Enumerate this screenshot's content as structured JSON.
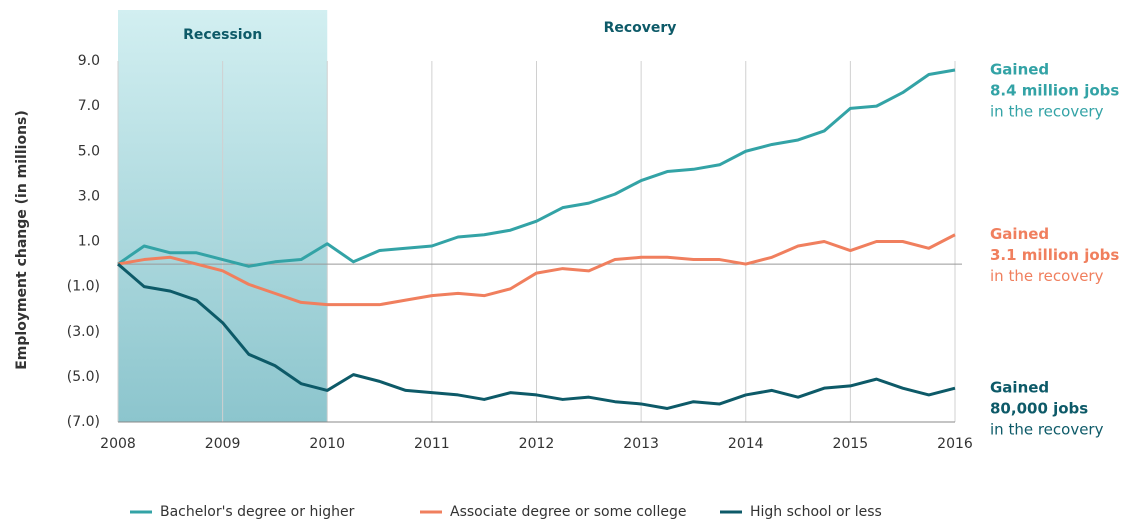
{
  "chart_data": {
    "type": "line",
    "y_label": "Employment change (in millions)",
    "shaded_regions": [
      {
        "label": "Recession",
        "start": 2008,
        "end": 2010
      }
    ],
    "region_labels": [
      {
        "label": "Recovery"
      }
    ],
    "x": [
      2008,
      2008.25,
      2008.5,
      2008.75,
      2009,
      2009.25,
      2009.5,
      2009.75,
      2010,
      2010.25,
      2010.5,
      2010.75,
      2011,
      2011.25,
      2011.5,
      2011.75,
      2012,
      2012.25,
      2012.5,
      2012.75,
      2013,
      2013.25,
      2013.5,
      2013.75,
      2014,
      2014.25,
      2014.5,
      2014.75,
      2015,
      2015.25,
      2015.5,
      2015.75,
      2016
    ],
    "series": [
      {
        "name": "Bachelor's degree or higher",
        "color": "#33a3a6",
        "values": [
          0,
          0.8,
          0.5,
          0.5,
          0.2,
          -0.1,
          0.1,
          0.2,
          0.9,
          0.1,
          0.6,
          0.7,
          0.8,
          1.2,
          1.3,
          1.5,
          1.9,
          2.5,
          2.7,
          3.1,
          3.7,
          4.1,
          4.2,
          4.4,
          5.0,
          5.3,
          5.5,
          5.9,
          6.9,
          7.0,
          7.6,
          8.4,
          8.6
        ]
      },
      {
        "name": "Associate degree or some college",
        "color": "#f07f5e",
        "values": [
          0,
          0.2,
          0.3,
          0.0,
          -0.3,
          -0.9,
          -1.3,
          -1.7,
          -1.8,
          -1.8,
          -1.8,
          -1.6,
          -1.4,
          -1.3,
          -1.4,
          -1.1,
          -0.4,
          -0.2,
          -0.3,
          0.2,
          0.3,
          0.3,
          0.2,
          0.2,
          0.0,
          0.3,
          0.8,
          1.0,
          0.6,
          1.0,
          1.0,
          0.7,
          1.3
        ]
      },
      {
        "name": "High school or less",
        "color": "#0d5a68",
        "values": [
          0,
          -1.0,
          -1.2,
          -1.6,
          -2.6,
          -4.0,
          -4.5,
          -5.3,
          -5.6,
          -4.9,
          -5.2,
          -5.6,
          -5.7,
          -5.8,
          -6.0,
          -5.7,
          -5.8,
          -6.0,
          -5.9,
          -6.1,
          -6.2,
          -6.4,
          -6.1,
          -6.2,
          -5.8,
          -5.6,
          -5.9,
          -5.5,
          -5.4,
          -5.1,
          -5.5,
          -5.8,
          -5.5
        ]
      }
    ],
    "annotations": [
      {
        "lines": [
          "Gained",
          "8.4 million jobs",
          "in the recovery"
        ]
      },
      {
        "lines": [
          "Gained",
          "3.1 million jobs",
          "in the recovery"
        ]
      },
      {
        "lines": [
          "Gained",
          "80,000 jobs",
          "in the recovery"
        ]
      }
    ],
    "xlim": [
      2008,
      2016
    ],
    "xticks": [
      2008,
      2009,
      2010,
      2011,
      2012,
      2013,
      2014,
      2015,
      2016
    ],
    "ylim": [
      -7,
      9
    ],
    "yticks": [
      {
        "value": 9,
        "label": "9.0"
      },
      {
        "value": 7,
        "label": "7.0"
      },
      {
        "value": 5,
        "label": "5.0"
      },
      {
        "value": 3,
        "label": "3.0"
      },
      {
        "value": 1,
        "label": "1.0"
      },
      {
        "value": -1,
        "label": "(1.0)"
      },
      {
        "value": -3,
        "label": "(3.0)"
      },
      {
        "value": -5,
        "label": "(5.0)"
      },
      {
        "value": -7,
        "label": "(7.0)"
      }
    ],
    "grid": true,
    "legend": "bottom"
  }
}
